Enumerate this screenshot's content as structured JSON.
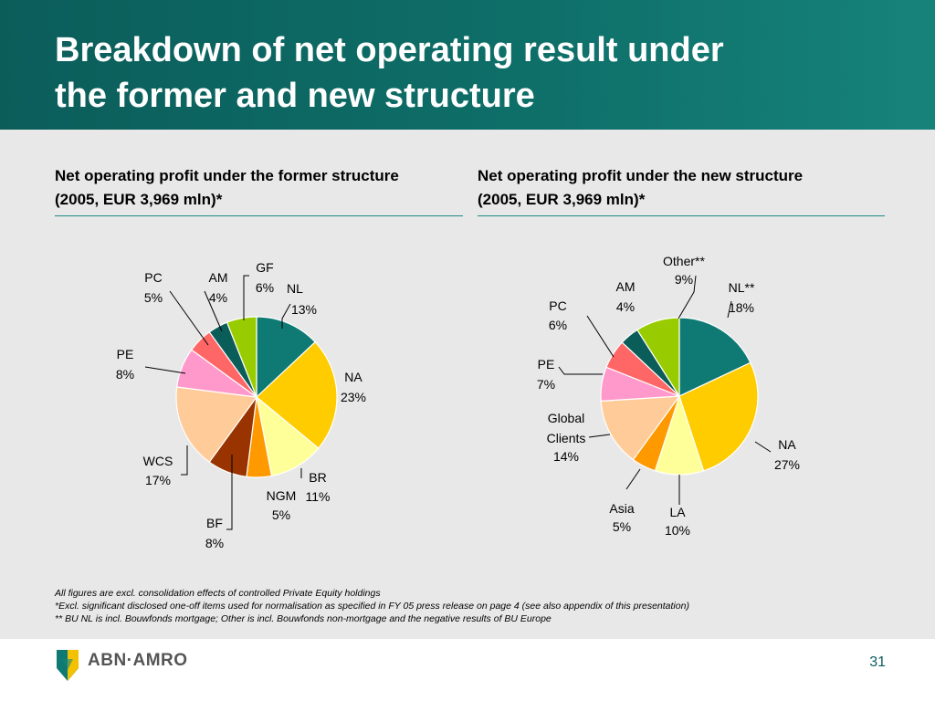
{
  "slide": {
    "title_line1": "Breakdown of net operating result under",
    "title_line2": "the former and new structure",
    "left_heading_line1": "Net operating profit under the former structure",
    "left_heading_line2": "(2005, EUR 3,969 mln)*",
    "right_heading_line1": "Net operating profit under the new structure",
    "right_heading_line2": "(2005, EUR 3,969 mln)*",
    "footnotes": [
      "All figures are excl. consolidation effects of controlled Private Equity holdings",
      "*Excl. significant disclosed one-off items used for normalisation as specified in FY 05 press release on page 4 (see also appendix of this presentation)",
      "** BU NL is  incl. Bouwfonds mortgage; Other is incl. Bouwfonds non-mortgage and the negative results of BU Europe"
    ],
    "logo_text": "ABN·AMRO",
    "page_number": "31"
  },
  "chart_data": [
    {
      "type": "pie",
      "slices": [
        {
          "label": "NL",
          "value": 13,
          "value_label": "13%",
          "color": "#0f7a74"
        },
        {
          "label": "NA",
          "value": 23,
          "value_label": "23%",
          "color": "#ffcc00"
        },
        {
          "label": "BR",
          "value": 11,
          "value_label": "11%",
          "color": "#ffff99"
        },
        {
          "label": "NGM",
          "value": 5,
          "value_label": "5%",
          "color": "#ff9900"
        },
        {
          "label": "BF",
          "value": 8,
          "value_label": "8%",
          "color": "#993300"
        },
        {
          "label": "WCS",
          "value": 17,
          "value_label": "17%",
          "color": "#ffcc99"
        },
        {
          "label": "PE",
          "value": 8,
          "value_label": "8%",
          "color": "#ff99cc"
        },
        {
          "label": "PC",
          "value": 5,
          "value_label": "5%",
          "color": "#ff6666"
        },
        {
          "label": "AM",
          "value": 4,
          "value_label": "4%",
          "color": "#0b5d5a"
        },
        {
          "label": "GF",
          "value": 6,
          "value_label": "6%",
          "color": "#99cc00"
        }
      ]
    },
    {
      "type": "pie",
      "slices": [
        {
          "label": "NL**",
          "value": 18,
          "value_label": "18%",
          "color": "#0f7a74"
        },
        {
          "label": "NA",
          "value": 27,
          "value_label": "27%",
          "color": "#ffcc00"
        },
        {
          "label": "LA",
          "value": 10,
          "value_label": "10%",
          "color": "#ffff99"
        },
        {
          "label": "Asia",
          "value": 5,
          "value_label": "5%",
          "color": "#ff9900"
        },
        {
          "label": "Global Clients",
          "label_lines": [
            "Global",
            "Clients"
          ],
          "value": 14,
          "value_label": "14%",
          "color": "#ffcc99"
        },
        {
          "label": "PE",
          "value": 7,
          "value_label": "7%",
          "color": "#ff99cc"
        },
        {
          "label": "PC",
          "value": 6,
          "value_label": "6%",
          "color": "#ff6666"
        },
        {
          "label": "AM",
          "value": 4,
          "value_label": "4%",
          "color": "#0b5d5a"
        },
        {
          "label": "Other**",
          "value": 9,
          "value_label": "9%",
          "color": "#99cc00"
        }
      ]
    }
  ]
}
